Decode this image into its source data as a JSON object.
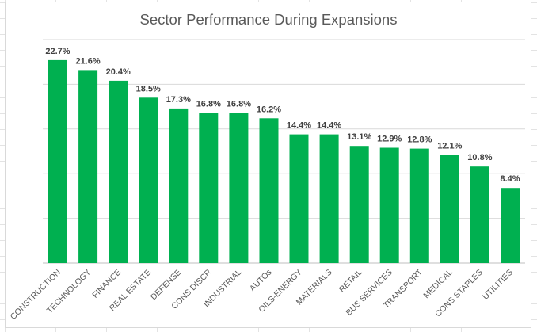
{
  "chart_data": {
    "type": "bar",
    "title": "Sector Performance During Expansions",
    "categories": [
      "CONSTRUCTION",
      "TECHNOLOGY",
      "FINANCE",
      "REAL ESTATE",
      "DEFENSE",
      "CONS DISCR",
      "INDUSTRIAL",
      "AUTOs",
      "OILS-ENERGY",
      "MATERIALS",
      "RETAIL",
      "BUS SERVICES",
      "TRANSPORT",
      "MEDICAL",
      "CONS STAPLES",
      "UTILITIES"
    ],
    "values": [
      22.7,
      21.6,
      20.4,
      18.5,
      17.3,
      16.8,
      16.8,
      16.2,
      14.4,
      14.4,
      13.1,
      12.9,
      12.8,
      12.1,
      10.8,
      8.4
    ],
    "value_labels": [
      "22.7%",
      "21.6%",
      "20.4%",
      "18.5%",
      "17.3%",
      "16.8%",
      "16.8%",
      "16.2%",
      "14.4%",
      "14.4%",
      "13.1%",
      "12.9%",
      "12.8%",
      "12.1%",
      "10.8%",
      "8.4%"
    ],
    "xlabel": "",
    "ylabel": "",
    "ylim": [
      0,
      25
    ],
    "grid": true,
    "legend": "none",
    "bar_color": "#00b050"
  }
}
